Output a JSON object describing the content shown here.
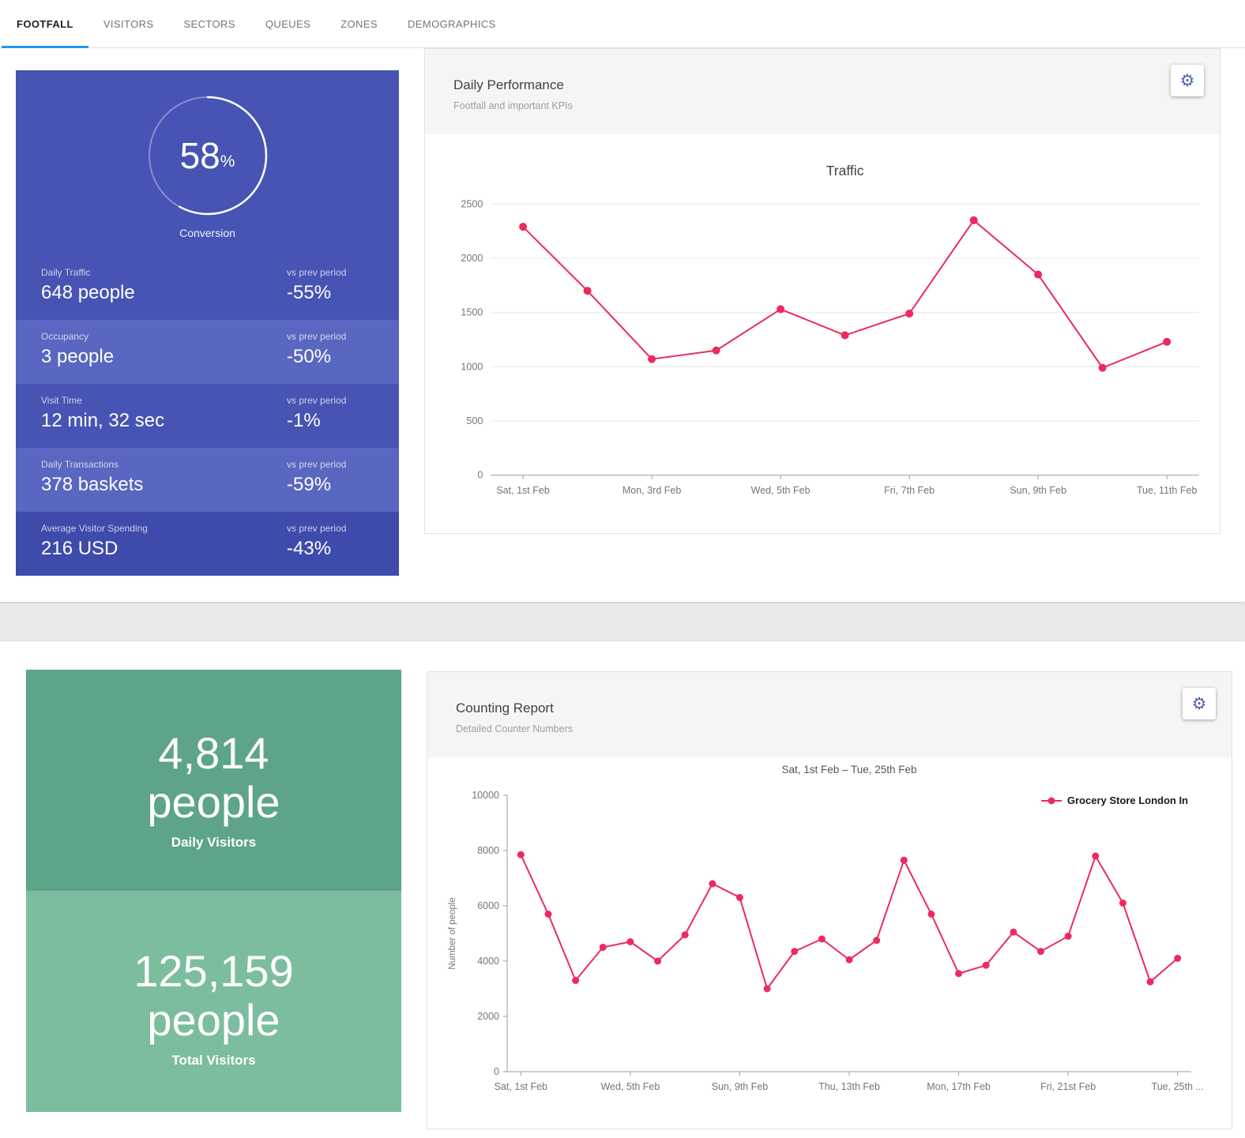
{
  "icons": {
    "gear": "⚙"
  },
  "colors": {
    "tab_underline": "#2196f3",
    "indigo_panel": "#4754b4",
    "indigo_row_alt": "#5a67c0",
    "indigo_row_dark": "#3e4bab",
    "green_top": "#5ea488",
    "green_bottom": "#7cbd9e",
    "accent_pink": "#ec2a5f",
    "gear_icon": "#5360b5"
  },
  "tabs": [
    {
      "label": "FOOTFALL",
      "active": true
    },
    {
      "label": "VISITORS",
      "active": false
    },
    {
      "label": "SECTORS",
      "active": false
    },
    {
      "label": "QUEUES",
      "active": false
    },
    {
      "label": "ZONES",
      "active": false
    },
    {
      "label": "DEMOGRAPHICS",
      "active": false
    }
  ],
  "kpi_panel": {
    "conversion_value": "58",
    "conversion_unit": "%",
    "conversion_pct": 58,
    "conversion_label": "Conversion",
    "rows": [
      {
        "label": "Daily Traffic",
        "value": "648 people",
        "vs_label": "vs prev period",
        "vs_value": "-55%"
      },
      {
        "label": "Occupancy",
        "value": "3 people",
        "vs_label": "vs prev period",
        "vs_value": "-50%"
      },
      {
        "label": "Visit Time",
        "value": "12 min, 32 sec",
        "vs_label": "vs prev period",
        "vs_value": "-1%"
      },
      {
        "label": "Daily Transactions",
        "value": "378 baskets",
        "vs_label": "vs prev period",
        "vs_value": "-59%"
      },
      {
        "label": "Average Visitor Spending",
        "value": "216 USD",
        "vs_label": "vs prev period",
        "vs_value": "-43%"
      }
    ]
  },
  "daily_performance": {
    "title": "Daily Performance",
    "subtitle": "Footfall and important KPIs"
  },
  "visitors_panel": {
    "daily": {
      "value": "4,814",
      "unit": "people",
      "label": "Daily Visitors"
    },
    "total": {
      "value": "125,159",
      "unit": "people",
      "label": "Total Visitors"
    }
  },
  "counting_report": {
    "title": "Counting Report",
    "subtitle": "Detailed Counter Numbers",
    "legend": "Grocery Store London In"
  },
  "chart_data": [
    {
      "name": "traffic",
      "type": "line",
      "title": "Traffic",
      "xlabel": "",
      "ylabel": "",
      "color": "#ec2a5f",
      "grid": true,
      "legend_position": "none",
      "x_tick_labels": [
        "Sat, 1st Feb",
        "Mon, 3rd Feb",
        "Wed, 5th Feb",
        "Fri, 7th Feb",
        "Sun, 9th Feb",
        "Tue, 11th Feb"
      ],
      "values": [
        2290,
        1700,
        1070,
        1150,
        1530,
        1290,
        1490,
        2350,
        1850,
        990,
        1230
      ],
      "ylim": [
        0,
        2500
      ],
      "yticks": [
        0,
        500,
        1000,
        1500,
        2000,
        2500
      ]
    },
    {
      "name": "counting",
      "type": "line",
      "title": "Sat, 1st Feb – Tue, 25th Feb",
      "xlabel": "",
      "ylabel": "Number of people",
      "color": "#ec2a5f",
      "grid": false,
      "legend_position": "top-right",
      "legend": [
        "Grocery Store London In"
      ],
      "x_tick_labels": [
        "Sat, 1st Feb",
        "Wed, 5th Feb",
        "Sun, 9th Feb",
        "Thu, 13th Feb",
        "Mon, 17th Feb",
        "Fri, 21st Feb",
        "Tue, 25th ..."
      ],
      "values": [
        7850,
        5700,
        3300,
        4500,
        4700,
        4000,
        4950,
        6800,
        6300,
        3000,
        4350,
        4800,
        4050,
        4750,
        7650,
        5700,
        3550,
        3850,
        5050,
        4350,
        4900,
        7800,
        6100,
        3250,
        4100
      ],
      "ylim": [
        0,
        10000
      ],
      "yticks": [
        0,
        2000,
        4000,
        6000,
        8000,
        10000
      ]
    }
  ]
}
